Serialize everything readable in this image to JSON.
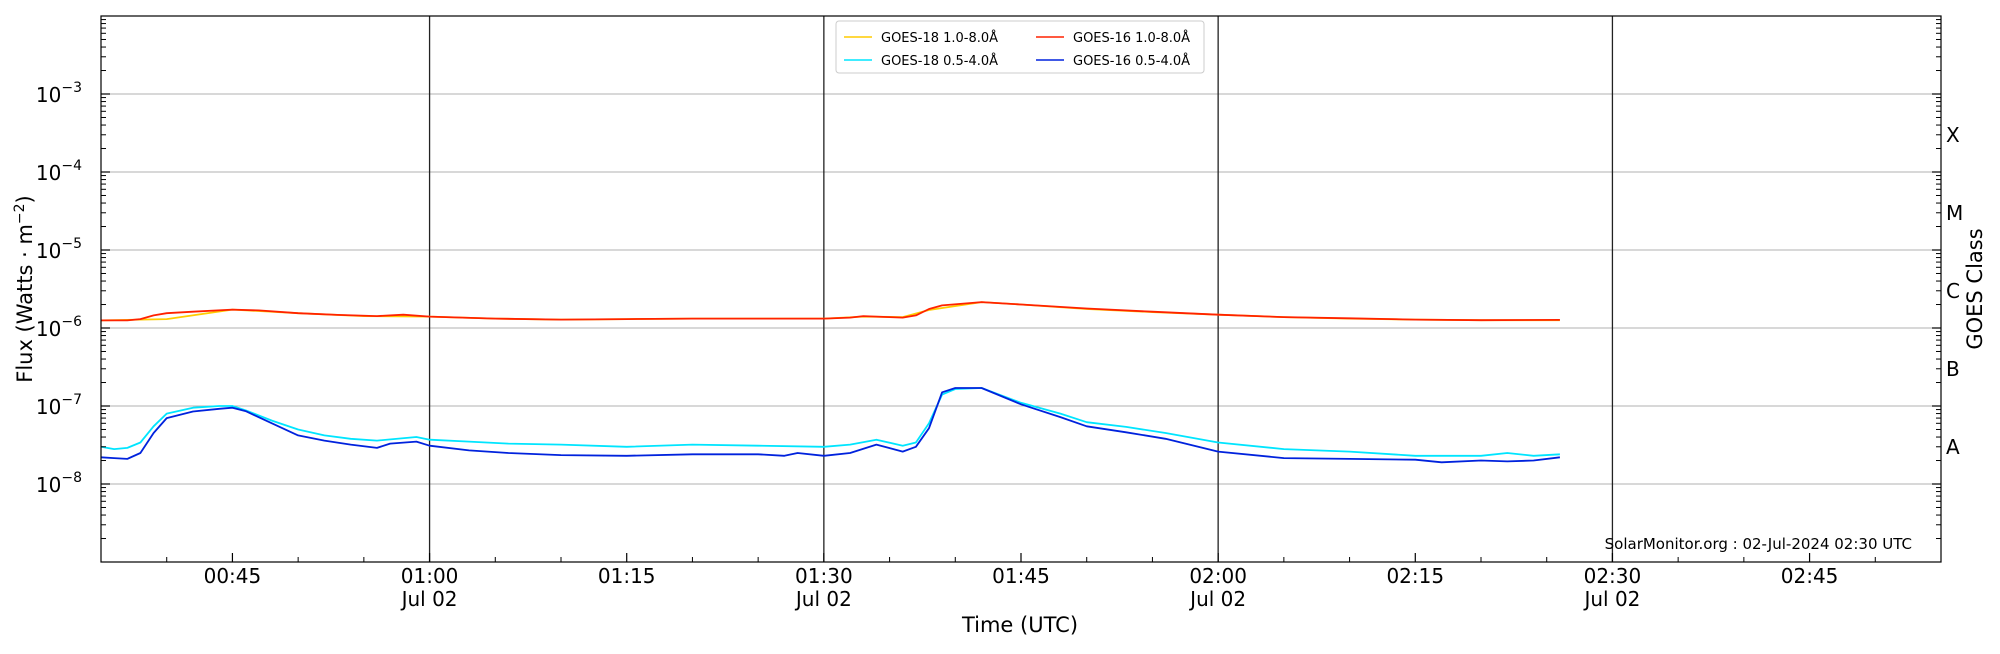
{
  "chart_data": {
    "type": "line",
    "title": "",
    "xlabel": "Time (UTC)",
    "ylabel_prefix": "Flux (Watts · m",
    "ylabel_sup": "−2",
    "ylabel_suffix": ")",
    "right_ylabel": "GOES Class",
    "y_scale": "log",
    "ylim": [
      1e-09,
      0.01
    ],
    "xlim": [
      "00:35",
      "02:55"
    ],
    "grid": "horizontal at decades",
    "legend_position": "top-center",
    "yticks": [
      {
        "value": 1e-08,
        "base": "10",
        "exp": "−8"
      },
      {
        "value": 1e-07,
        "base": "10",
        "exp": "−7"
      },
      {
        "value": 1e-06,
        "base": "10",
        "exp": "−6"
      },
      {
        "value": 1e-05,
        "base": "10",
        "exp": "−5"
      },
      {
        "value": 0.0001,
        "base": "10",
        "exp": "−4"
      },
      {
        "value": 0.001,
        "base": "10",
        "exp": "−3"
      }
    ],
    "xticks": [
      {
        "time": "00:45",
        "label": "00:45",
        "date": ""
      },
      {
        "time": "01:00",
        "label": "01:00",
        "date": "Jul 02"
      },
      {
        "time": "01:15",
        "label": "01:15",
        "date": ""
      },
      {
        "time": "01:30",
        "label": "01:30",
        "date": "Jul 02"
      },
      {
        "time": "01:45",
        "label": "01:45",
        "date": ""
      },
      {
        "time": "02:00",
        "label": "02:00",
        "date": "Jul 02"
      },
      {
        "time": "02:15",
        "label": "02:15",
        "date": ""
      },
      {
        "time": "02:30",
        "label": "02:30",
        "date": "Jul 02"
      },
      {
        "time": "02:45",
        "label": "02:45",
        "date": ""
      }
    ],
    "vertical_lines": [
      "01:00",
      "01:30",
      "02:00",
      "02:30"
    ],
    "goes_classes": [
      {
        "label": "A",
        "value": 3e-08
      },
      {
        "label": "B",
        "value": 3e-07
      },
      {
        "label": "C",
        "value": 3e-06
      },
      {
        "label": "M",
        "value": 3e-05
      },
      {
        "label": "X",
        "value": 0.0003
      }
    ],
    "annotation": "SolarMonitor.org : 02-Jul-2024 02:30 UTC",
    "series": [
      {
        "name": "GOES-18 1.0-8.0Å",
        "color": "#ffcc00",
        "points": [
          [
            "00:35",
            1.25e-06
          ],
          [
            "00:40",
            1.3e-06
          ],
          [
            "00:45",
            1.72e-06
          ],
          [
            "00:50",
            1.55e-06
          ],
          [
            "00:55",
            1.42e-06
          ],
          [
            "01:00",
            1.4e-06
          ],
          [
            "01:05",
            1.32e-06
          ],
          [
            "01:10",
            1.28e-06
          ],
          [
            "01:15",
            1.3e-06
          ],
          [
            "01:20",
            1.32e-06
          ],
          [
            "01:25",
            1.32e-06
          ],
          [
            "01:30",
            1.32e-06
          ],
          [
            "01:33",
            1.4e-06
          ],
          [
            "01:36",
            1.38e-06
          ],
          [
            "01:38",
            1.7e-06
          ],
          [
            "01:42",
            2.15e-06
          ],
          [
            "01:45",
            2e-06
          ],
          [
            "01:50",
            1.75e-06
          ],
          [
            "01:55",
            1.6e-06
          ],
          [
            "02:00",
            1.48e-06
          ],
          [
            "02:05",
            1.38e-06
          ],
          [
            "02:10",
            1.32e-06
          ],
          [
            "02:15",
            1.28e-06
          ],
          [
            "02:20",
            1.26e-06
          ],
          [
            "02:26",
            1.26e-06
          ]
        ]
      },
      {
        "name": "GOES-16 1.0-8.0Å",
        "color": "#ff2200",
        "points": [
          [
            "00:35",
            1.25e-06
          ],
          [
            "00:37",
            1.25e-06
          ],
          [
            "00:38",
            1.3e-06
          ],
          [
            "00:39",
            1.45e-06
          ],
          [
            "00:40",
            1.55e-06
          ],
          [
            "00:42",
            1.62e-06
          ],
          [
            "00:45",
            1.72e-06
          ],
          [
            "00:47",
            1.68e-06
          ],
          [
            "00:50",
            1.55e-06
          ],
          [
            "00:53",
            1.47e-06
          ],
          [
            "00:56",
            1.42e-06
          ],
          [
            "00:58",
            1.48e-06
          ],
          [
            "01:00",
            1.4e-06
          ],
          [
            "01:05",
            1.32e-06
          ],
          [
            "01:10",
            1.28e-06
          ],
          [
            "01:15",
            1.3e-06
          ],
          [
            "01:20",
            1.32e-06
          ],
          [
            "01:25",
            1.32e-06
          ],
          [
            "01:30",
            1.32e-06
          ],
          [
            "01:32",
            1.36e-06
          ],
          [
            "01:33",
            1.42e-06
          ],
          [
            "01:35",
            1.38e-06
          ],
          [
            "01:36",
            1.36e-06
          ],
          [
            "01:37",
            1.45e-06
          ],
          [
            "01:38",
            1.75e-06
          ],
          [
            "01:39",
            1.95e-06
          ],
          [
            "01:42",
            2.15e-06
          ],
          [
            "01:45",
            2e-06
          ],
          [
            "01:50",
            1.78e-06
          ],
          [
            "01:55",
            1.62e-06
          ],
          [
            "02:00",
            1.48e-06
          ],
          [
            "02:05",
            1.38e-06
          ],
          [
            "02:10",
            1.33e-06
          ],
          [
            "02:15",
            1.28e-06
          ],
          [
            "02:20",
            1.26e-06
          ],
          [
            "02:26",
            1.27e-06
          ]
        ]
      },
      {
        "name": "GOES-18 0.5-4.0Å",
        "color": "#00e5ff",
        "points": [
          [
            "00:35",
            3e-08
          ],
          [
            "00:36",
            2.8e-08
          ],
          [
            "00:37",
            2.9e-08
          ],
          [
            "00:38",
            3.4e-08
          ],
          [
            "00:39",
            5.5e-08
          ],
          [
            "00:40",
            8e-08
          ],
          [
            "00:42",
            9.5e-08
          ],
          [
            "00:44",
            1e-07
          ],
          [
            "00:45",
            1e-07
          ],
          [
            "00:46",
            8.8e-08
          ],
          [
            "00:48",
            6.5e-08
          ],
          [
            "00:50",
            5e-08
          ],
          [
            "00:52",
            4.2e-08
          ],
          [
            "00:54",
            3.8e-08
          ],
          [
            "00:56",
            3.6e-08
          ],
          [
            "00:59",
            4e-08
          ],
          [
            "01:00",
            3.7e-08
          ],
          [
            "01:03",
            3.5e-08
          ],
          [
            "01:06",
            3.3e-08
          ],
          [
            "01:10",
            3.2e-08
          ],
          [
            "01:15",
            3e-08
          ],
          [
            "01:20",
            3.2e-08
          ],
          [
            "01:25",
            3.1e-08
          ],
          [
            "01:30",
            3e-08
          ],
          [
            "01:32",
            3.2e-08
          ],
          [
            "01:34",
            3.7e-08
          ],
          [
            "01:36",
            3.1e-08
          ],
          [
            "01:37",
            3.4e-08
          ],
          [
            "01:38",
            6e-08
          ],
          [
            "01:39",
            1.4e-07
          ],
          [
            "01:40",
            1.65e-07
          ],
          [
            "01:42",
            1.7e-07
          ],
          [
            "01:45",
            1.1e-07
          ],
          [
            "01:48",
            8e-08
          ],
          [
            "01:50",
            6.2e-08
          ],
          [
            "01:53",
            5.4e-08
          ],
          [
            "01:56",
            4.5e-08
          ],
          [
            "02:00",
            3.4e-08
          ],
          [
            "02:05",
            2.8e-08
          ],
          [
            "02:10",
            2.6e-08
          ],
          [
            "02:15",
            2.3e-08
          ],
          [
            "02:20",
            2.3e-08
          ],
          [
            "02:22",
            2.5e-08
          ],
          [
            "02:24",
            2.3e-08
          ],
          [
            "02:26",
            2.4e-08
          ]
        ]
      },
      {
        "name": "GOES-16 0.5-4.0Å",
        "color": "#0022dd",
        "points": [
          [
            "00:35",
            2.2e-08
          ],
          [
            "00:36",
            2.15e-08
          ],
          [
            "00:37",
            2.1e-08
          ],
          [
            "00:38",
            2.5e-08
          ],
          [
            "00:39",
            4.5e-08
          ],
          [
            "00:40",
            7e-08
          ],
          [
            "00:42",
            8.5e-08
          ],
          [
            "00:44",
            9.2e-08
          ],
          [
            "00:45",
            9.5e-08
          ],
          [
            "00:46",
            8.6e-08
          ],
          [
            "00:48",
            6e-08
          ],
          [
            "00:50",
            4.2e-08
          ],
          [
            "00:52",
            3.6e-08
          ],
          [
            "00:54",
            3.2e-08
          ],
          [
            "00:56",
            2.9e-08
          ],
          [
            "00:57",
            3.3e-08
          ],
          [
            "00:59",
            3.5e-08
          ],
          [
            "01:00",
            3.1e-08
          ],
          [
            "01:03",
            2.7e-08
          ],
          [
            "01:06",
            2.5e-08
          ],
          [
            "01:10",
            2.35e-08
          ],
          [
            "01:15",
            2.3e-08
          ],
          [
            "01:20",
            2.4e-08
          ],
          [
            "01:25",
            2.4e-08
          ],
          [
            "01:27",
            2.3e-08
          ],
          [
            "01:28",
            2.5e-08
          ],
          [
            "01:30",
            2.3e-08
          ],
          [
            "01:32",
            2.5e-08
          ],
          [
            "01:34",
            3.2e-08
          ],
          [
            "01:36",
            2.6e-08
          ],
          [
            "01:37",
            3e-08
          ],
          [
            "01:38",
            5.2e-08
          ],
          [
            "01:39",
            1.5e-07
          ],
          [
            "01:40",
            1.7e-07
          ],
          [
            "01:42",
            1.7e-07
          ],
          [
            "01:45",
            1.05e-07
          ],
          [
            "01:48",
            7.2e-08
          ],
          [
            "01:50",
            5.5e-08
          ],
          [
            "01:53",
            4.6e-08
          ],
          [
            "01:56",
            3.8e-08
          ],
          [
            "02:00",
            2.6e-08
          ],
          [
            "02:05",
            2.15e-08
          ],
          [
            "02:10",
            2.1e-08
          ],
          [
            "02:15",
            2.05e-08
          ],
          [
            "02:17",
            1.9e-08
          ],
          [
            "02:20",
            2e-08
          ],
          [
            "02:22",
            1.95e-08
          ],
          [
            "02:24",
            2e-08
          ],
          [
            "02:26",
            2.2e-08
          ]
        ]
      }
    ]
  }
}
